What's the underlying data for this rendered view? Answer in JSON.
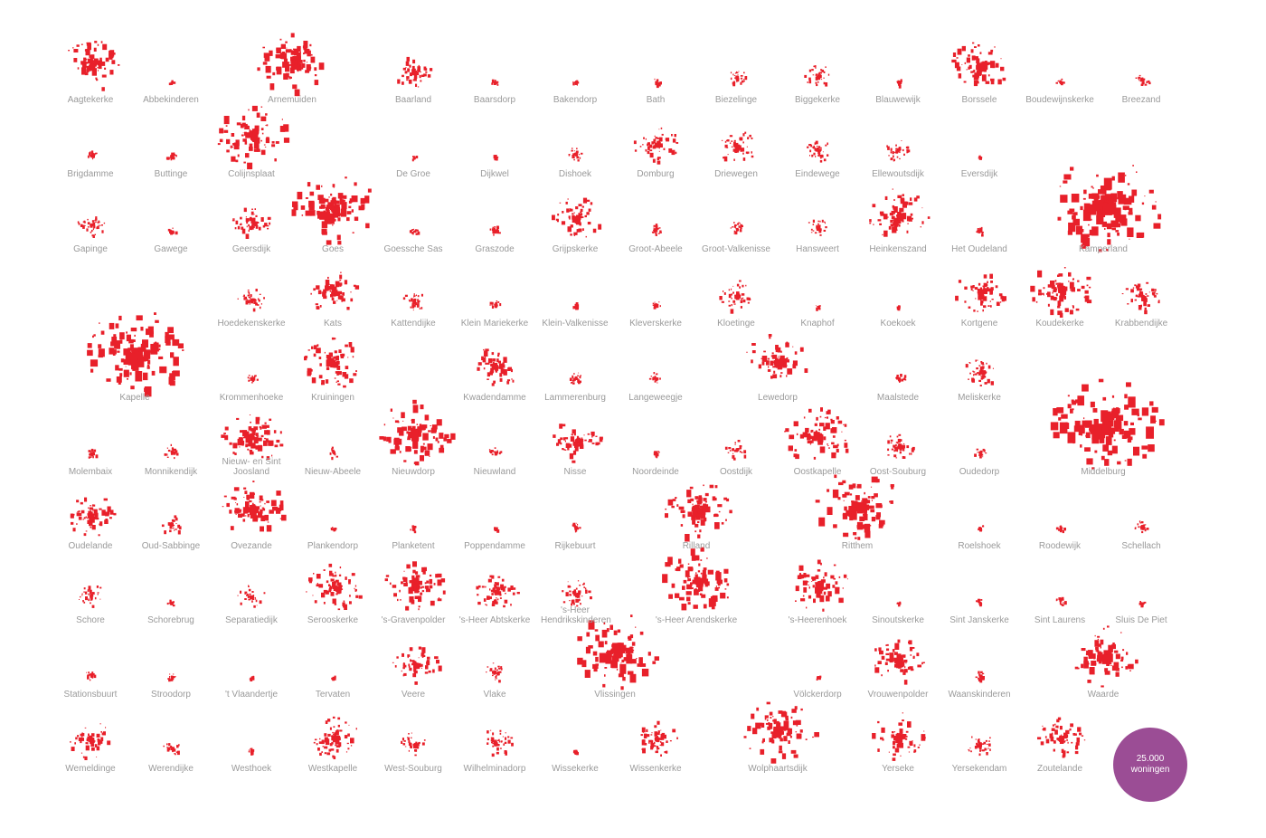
{
  "places": [
    "Aagtekerke",
    "Abbekinderen",
    "Arnemuiden",
    "Baarland",
    "Baarsdorp",
    "Bakendorp",
    "Bath",
    "Biezelinge",
    "Biggekerke",
    "Blauwewijk",
    "Borssele",
    "Boudewijnskerke",
    "Breezand",
    "Brigdamme",
    "Buttinge",
    "Colijnsplaat",
    "De Groe",
    "Dijkwel",
    "Dishoek",
    "Domburg",
    "Driewegen",
    "Eindewege",
    "Ellewoutsdijk",
    "Eversdijk",
    "Gapinge",
    "Gawege",
    "Geersdijk",
    "Goes",
    "Goessche Sas",
    "Graszode",
    "Grijpskerke",
    "Groot-Abeele",
    "Groot-Valkenisse",
    "Hansweert",
    "Heinkenszand",
    "Het Oudeland",
    "Kamperland",
    "Hoedekenskerke",
    "Kats",
    "Kattendijke",
    "Klein Mariekerke",
    "Klein-Valkenisse",
    "Kleverskerke",
    "Kloetinge",
    "Knaphof",
    "Koekoek",
    "Kortgene",
    "Koudekerke",
    "Krabbendijke",
    "Kapelle",
    "Krommenhoeke",
    "Kruiningen",
    "Kwadendamme",
    "Lammerenburg",
    "Langeweegje",
    "Lewedorp",
    "Maalstede",
    "Meliskerke",
    "Molembaix",
    "Monnikendijk",
    "Nieuw- en Sint Joosland",
    "Nieuw-Abeele",
    "Nieuwdorp",
    "Nieuwland",
    "Nisse",
    "Noordeinde",
    "Oostdijk",
    "Oostkapelle",
    "Oost-Souburg",
    "Oudedorp",
    "Middelburg",
    "Oudelande",
    "Oud-Sabbinge",
    "Ovezande",
    "Plankendorp",
    "Planketent",
    "Poppendamme",
    "Rijkebuurt",
    "Rilland",
    "Ritthem",
    "Roelshoek",
    "Roodewijk",
    "Schellach",
    "Schore",
    "Schorebrug",
    "Separatiedijk",
    "Serooskerke",
    "'s-Gravenpolder",
    "'s-Heer Abtskerke",
    "'s-Heer Hendrikskinderen",
    "'s-Heer Arendskerke",
    "'s-Heerenhoek",
    "Sinoutskerke",
    "Sint Janskerke",
    "Sint Laurens",
    "Sluis De Piet",
    "Stationsbuurt",
    "Stroodorp",
    "'t Vlaandertje",
    "Tervaten",
    "Veere",
    "Vlake",
    "Vlissingen",
    "Völckerdorp",
    "Vrouwenpolder",
    "Waanskinderen",
    "Waarde",
    "Wemeldinge",
    "Werendijke",
    "Westhoek",
    "Westkapelle",
    "West-Souburg",
    "Wilhelminadorp",
    "Wissekerke",
    "Wissenkerke",
    "Wolphaartsdijk",
    "Yerseke",
    "Yersekendam",
    "Zoutelande"
  ],
  "legend": {
    "value": "25.000",
    "unit": "woningen"
  }
}
